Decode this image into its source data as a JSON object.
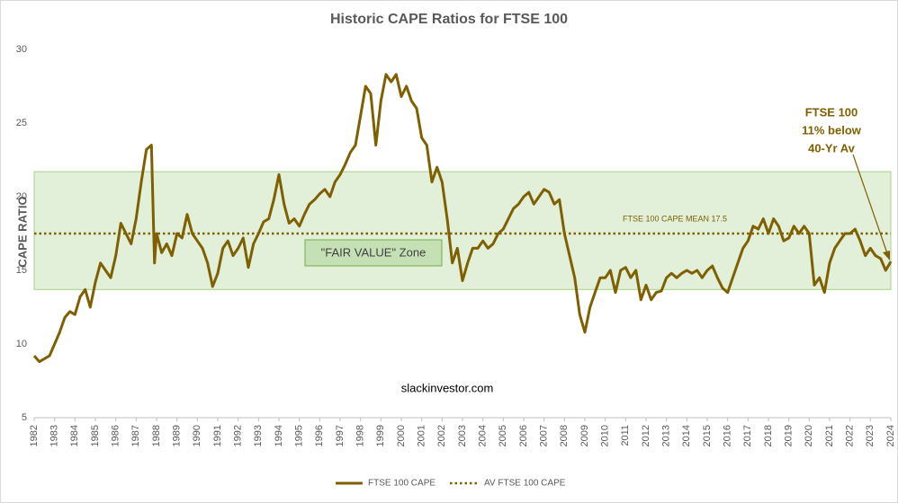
{
  "chart_data": {
    "type": "line",
    "title": "Historic CAPE Ratios for FTSE 100",
    "y_label": "CAPE RATIO",
    "watermark": "slackinvestor.com",
    "mean_label": "FTSE 100 CAPE MEAN 17.5",
    "zone": {
      "label": "\"FAIR VALUE\" Zone",
      "range": [
        13.7,
        21.7
      ],
      "color": "#e2f0d9"
    },
    "annotation": [
      "FTSE 100",
      "11% below",
      "40-Yr Av"
    ],
    "xlim": [
      1982,
      2024
    ],
    "xticks": [
      1982,
      1983,
      1984,
      1985,
      1986,
      1987,
      1988,
      1989,
      1990,
      1991,
      1992,
      1993,
      1994,
      1995,
      1996,
      1997,
      1998,
      1999,
      2000,
      2001,
      2002,
      2003,
      2004,
      2005,
      2006,
      2007,
      2008,
      2009,
      2010,
      2011,
      2012,
      2013,
      2014,
      2015,
      2016,
      2017,
      2018,
      2019,
      2020,
      2021,
      2022,
      2023,
      2024
    ],
    "ylim": [
      5,
      30
    ],
    "yticks": [
      5,
      10,
      15,
      20,
      25,
      30
    ],
    "series": [
      {
        "name": "FTSE 100 CAPE",
        "color": "#7f6000",
        "x": [
          1982,
          1982.25,
          1982.5,
          1982.75,
          1983,
          1983.25,
          1983.5,
          1983.75,
          1984,
          1984.25,
          1984.5,
          1984.75,
          1985,
          1985.25,
          1985.5,
          1985.75,
          1986,
          1986.25,
          1986.5,
          1986.75,
          1987,
          1987.25,
          1987.5,
          1987.75,
          1987.9,
          1988,
          1988.25,
          1988.5,
          1988.75,
          1989,
          1989.25,
          1989.5,
          1989.75,
          1990,
          1990.25,
          1990.5,
          1990.75,
          1991,
          1991.25,
          1991.5,
          1991.75,
          1992,
          1992.25,
          1992.5,
          1992.75,
          1993,
          1993.25,
          1993.5,
          1993.75,
          1994,
          1994.25,
          1994.5,
          1994.75,
          1995,
          1995.25,
          1995.5,
          1995.75,
          1996,
          1996.25,
          1996.5,
          1996.75,
          1997,
          1997.25,
          1997.5,
          1997.75,
          1998,
          1998.25,
          1998.5,
          1998.75,
          1999,
          1999.25,
          1999.5,
          1999.75,
          2000,
          2000.25,
          2000.5,
          2000.75,
          2001,
          2001.25,
          2001.5,
          2001.75,
          2002,
          2002.25,
          2002.5,
          2002.75,
          2003,
          2003.25,
          2003.5,
          2003.75,
          2004,
          2004.25,
          2004.5,
          2004.75,
          2005,
          2005.25,
          2005.5,
          2005.75,
          2006,
          2006.25,
          2006.5,
          2006.75,
          2007,
          2007.25,
          2007.5,
          2007.75,
          2008,
          2008.25,
          2008.5,
          2008.75,
          2009,
          2009.25,
          2009.5,
          2009.75,
          2010,
          2010.25,
          2010.5,
          2010.75,
          2011,
          2011.25,
          2011.5,
          2011.75,
          2012,
          2012.25,
          2012.5,
          2012.75,
          2013,
          2013.25,
          2013.5,
          2013.75,
          2014,
          2014.25,
          2014.5,
          2014.75,
          2015,
          2015.25,
          2015.5,
          2015.75,
          2016,
          2016.25,
          2016.5,
          2016.75,
          2017,
          2017.25,
          2017.5,
          2017.75,
          2018,
          2018.25,
          2018.5,
          2018.75,
          2019,
          2019.25,
          2019.5,
          2019.75,
          2020,
          2020.25,
          2020.5,
          2020.75,
          2021,
          2021.25,
          2021.5,
          2021.75,
          2022,
          2022.25,
          2022.5,
          2022.75,
          2023,
          2023.25,
          2023.5,
          2023.75,
          2024
        ],
        "values": [
          9.2,
          8.8,
          9.0,
          9.2,
          10.0,
          10.8,
          11.8,
          12.2,
          12.0,
          13.2,
          13.7,
          12.5,
          14.2,
          15.5,
          15.0,
          14.5,
          16.0,
          18.2,
          17.5,
          16.8,
          18.5,
          21.0,
          23.2,
          23.5,
          15.5,
          17.5,
          16.2,
          16.8,
          16.0,
          17.5,
          17.2,
          18.8,
          17.5,
          17.0,
          16.5,
          15.5,
          13.9,
          14.8,
          16.5,
          17.0,
          16.0,
          16.5,
          17.2,
          15.2,
          16.8,
          17.5,
          18.3,
          18.5,
          19.8,
          21.5,
          19.5,
          18.2,
          18.5,
          18.0,
          18.8,
          19.5,
          19.8,
          20.2,
          20.5,
          20.0,
          21.0,
          21.5,
          22.2,
          23.0,
          23.5,
          25.5,
          27.5,
          27.0,
          23.5,
          26.5,
          28.3,
          27.8,
          28.3,
          26.8,
          27.5,
          26.5,
          26.0,
          24.0,
          23.5,
          21.0,
          22.0,
          21.0,
          18.5,
          15.5,
          16.5,
          14.3,
          15.5,
          16.5,
          16.5,
          17.0,
          16.5,
          16.8,
          17.5,
          17.8,
          18.5,
          19.2,
          19.5,
          20.0,
          20.3,
          19.5,
          20.0,
          20.5,
          20.3,
          19.5,
          19.8,
          17.5,
          16.0,
          14.5,
          12.0,
          10.8,
          12.5,
          13.5,
          14.5,
          14.5,
          15.0,
          13.5,
          15.0,
          15.2,
          14.5,
          15.0,
          13.0,
          14.0,
          13.0,
          13.5,
          13.6,
          14.5,
          14.8,
          14.5,
          14.8,
          15.0,
          14.8,
          15.0,
          14.5,
          15.0,
          15.3,
          14.5,
          13.8,
          13.5,
          14.5,
          15.5,
          16.5,
          17.0,
          18.0,
          17.8,
          18.5,
          17.5,
          18.5,
          18.0,
          17.0,
          17.2,
          18.0,
          17.5,
          18.0,
          17.5,
          14.0,
          14.5,
          13.5,
          15.5,
          16.5,
          17.0,
          17.5,
          17.5,
          17.8,
          17.0,
          16.0,
          16.5,
          16.0,
          15.8,
          15.0,
          15.6
        ]
      },
      {
        "name": "AV FTSE 100 CAPE",
        "color": "#7f6000",
        "value": 17.5,
        "style": "dotted"
      }
    ]
  }
}
